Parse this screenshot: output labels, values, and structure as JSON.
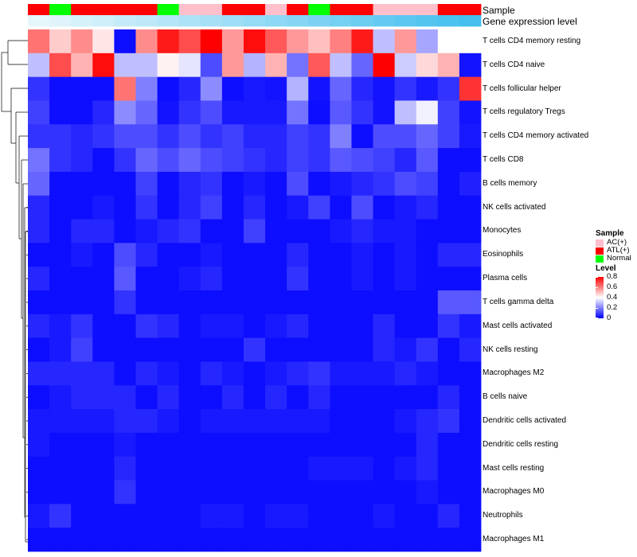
{
  "chart_data": {
    "type": "heatmap",
    "annotation_labels": [
      "Sample",
      "Gene expression level"
    ],
    "rows": [
      "T cells CD4 memory resting",
      "T cells CD4 naive",
      "T cells follicular helper",
      "T cells regulatory  Tregs",
      "T cells CD4 memory activated",
      "T cells CD8",
      "B cells memory",
      "NK cells activated",
      "Monocytes",
      "Eosinophils",
      "Plasma cells",
      "T cells gamma delta",
      "Mast cells activated",
      "NK cells resting",
      "Macrophages M2",
      "B cells naive",
      "Dendritic cells activated",
      "Dendritic cells resting",
      "Mast cells resting",
      "Macrophages M0",
      "Neutrophils",
      "Macrophages M1"
    ],
    "column_samples": [
      "ATL(+)",
      "Normal",
      "ATL(+)",
      "ATL(+)",
      "ATL(+)",
      "ATL(+)",
      "Normal",
      "AC(+)",
      "AC(+)",
      "ATL(+)",
      "ATL(+)",
      "AC(+)",
      "ATL(+)",
      "Normal",
      "ATL(+)",
      "ATL(+)",
      "AC(+)",
      "AC(+)",
      "AC(+)",
      "ATL(+)",
      "ATL(+)"
    ],
    "column_expression": [
      0.0,
      0.05,
      0.1,
      0.15,
      0.2,
      0.25,
      0.3,
      0.35,
      0.4,
      0.45,
      0.5,
      0.55,
      0.6,
      0.65,
      0.7,
      0.75,
      0.8,
      0.85,
      0.9,
      0.95,
      1.0
    ],
    "values": [
      [
        0.62,
        0.48,
        0.58,
        0.44,
        0.02,
        0.58,
        0.76,
        0.68,
        0.8,
        0.56,
        0.78,
        0.66,
        0.56,
        0.5,
        0.6,
        0.76,
        0.3,
        0.56,
        0.26,
        0.4,
        0.4
      ],
      [
        0.3,
        0.68,
        0.52,
        0.78,
        0.3,
        0.3,
        0.42,
        0.36,
        0.12,
        0.56,
        0.28,
        0.52,
        0.18,
        0.66,
        0.3,
        0.16,
        0.8,
        0.32,
        0.46,
        0.52,
        0.03
      ],
      [
        0.08,
        0.02,
        0.02,
        0.02,
        0.62,
        0.2,
        0.02,
        0.06,
        0.22,
        0.02,
        0.04,
        0.03,
        0.28,
        0.03,
        0.16,
        0.06,
        0.03,
        0.08,
        0.04,
        0.08,
        0.72
      ],
      [
        0.1,
        0.02,
        0.02,
        0.06,
        0.22,
        0.16,
        0.03,
        0.08,
        0.12,
        0.04,
        0.04,
        0.04,
        0.18,
        0.02,
        0.14,
        0.08,
        0.03,
        0.3,
        0.38,
        0.1,
        0.03
      ],
      [
        0.08,
        0.08,
        0.06,
        0.08,
        0.12,
        0.12,
        0.08,
        0.12,
        0.08,
        0.1,
        0.06,
        0.06,
        0.1,
        0.08,
        0.2,
        0.02,
        0.12,
        0.12,
        0.16,
        0.1,
        0.04
      ],
      [
        0.18,
        0.08,
        0.06,
        0.02,
        0.08,
        0.16,
        0.12,
        0.16,
        0.12,
        0.1,
        0.08,
        0.06,
        0.1,
        0.08,
        0.14,
        0.12,
        0.1,
        0.06,
        0.14,
        0.02,
        0.02
      ],
      [
        0.16,
        0.02,
        0.02,
        0.02,
        0.02,
        0.1,
        0.02,
        0.06,
        0.08,
        0.02,
        0.04,
        0.02,
        0.12,
        0.02,
        0.04,
        0.06,
        0.08,
        0.12,
        0.1,
        0.02,
        0.05
      ],
      [
        0.06,
        0.02,
        0.02,
        0.04,
        0.02,
        0.08,
        0.02,
        0.06,
        0.1,
        0.02,
        0.06,
        0.02,
        0.04,
        0.1,
        0.02,
        0.12,
        0.02,
        0.04,
        0.06,
        0.02,
        0.02
      ],
      [
        0.06,
        0.02,
        0.06,
        0.06,
        0.02,
        0.04,
        0.06,
        0.08,
        0.02,
        0.02,
        0.1,
        0.02,
        0.02,
        0.02,
        0.04,
        0.06,
        0.04,
        0.04,
        0.02,
        0.02,
        0.02
      ],
      [
        0.02,
        0.02,
        0.04,
        0.02,
        0.12,
        0.06,
        0.02,
        0.02,
        0.04,
        0.02,
        0.02,
        0.02,
        0.06,
        0.02,
        0.02,
        0.04,
        0.02,
        0.04,
        0.02,
        0.06,
        0.06
      ],
      [
        0.06,
        0.02,
        0.02,
        0.02,
        0.14,
        0.02,
        0.02,
        0.04,
        0.06,
        0.02,
        0.02,
        0.02,
        0.08,
        0.02,
        0.02,
        0.04,
        0.02,
        0.04,
        0.02,
        0.02,
        0.02
      ],
      [
        0.02,
        0.02,
        0.02,
        0.02,
        0.08,
        0.02,
        0.02,
        0.02,
        0.02,
        0.02,
        0.02,
        0.02,
        0.02,
        0.02,
        0.02,
        0.02,
        0.02,
        0.02,
        0.02,
        0.14,
        0.14
      ],
      [
        0.06,
        0.04,
        0.08,
        0.02,
        0.02,
        0.08,
        0.06,
        0.02,
        0.04,
        0.04,
        0.02,
        0.04,
        0.06,
        0.02,
        0.02,
        0.02,
        0.06,
        0.02,
        0.02,
        0.08,
        0.04
      ],
      [
        0.02,
        0.04,
        0.1,
        0.02,
        0.02,
        0.02,
        0.02,
        0.02,
        0.02,
        0.02,
        0.08,
        0.02,
        0.02,
        0.02,
        0.02,
        0.02,
        0.06,
        0.04,
        0.08,
        0.02,
        0.06
      ],
      [
        0.06,
        0.06,
        0.06,
        0.06,
        0.02,
        0.06,
        0.04,
        0.02,
        0.06,
        0.04,
        0.02,
        0.04,
        0.06,
        0.08,
        0.04,
        0.04,
        0.04,
        0.06,
        0.04,
        0.02,
        0.02
      ],
      [
        0.02,
        0.04,
        0.06,
        0.06,
        0.06,
        0.02,
        0.06,
        0.02,
        0.02,
        0.06,
        0.02,
        0.06,
        0.02,
        0.06,
        0.02,
        0.02,
        0.02,
        0.02,
        0.02,
        0.06,
        0.02
      ],
      [
        0.04,
        0.04,
        0.04,
        0.04,
        0.06,
        0.06,
        0.04,
        0.02,
        0.04,
        0.04,
        0.04,
        0.04,
        0.04,
        0.04,
        0.02,
        0.02,
        0.02,
        0.04,
        0.06,
        0.08,
        0.02
      ],
      [
        0.04,
        0.02,
        0.02,
        0.02,
        0.04,
        0.02,
        0.02,
        0.02,
        0.02,
        0.02,
        0.02,
        0.02,
        0.02,
        0.02,
        0.02,
        0.02,
        0.02,
        0.02,
        0.06,
        0.02,
        0.02
      ],
      [
        0.02,
        0.02,
        0.02,
        0.02,
        0.06,
        0.02,
        0.02,
        0.02,
        0.02,
        0.02,
        0.02,
        0.02,
        0.02,
        0.04,
        0.04,
        0.04,
        0.02,
        0.04,
        0.06,
        0.02,
        0.02
      ],
      [
        0.02,
        0.02,
        0.02,
        0.02,
        0.08,
        0.02,
        0.02,
        0.02,
        0.02,
        0.02,
        0.02,
        0.02,
        0.02,
        0.02,
        0.02,
        0.02,
        0.02,
        0.02,
        0.04,
        0.02,
        0.02
      ],
      [
        0.04,
        0.08,
        0.02,
        0.02,
        0.02,
        0.02,
        0.02,
        0.02,
        0.04,
        0.04,
        0.02,
        0.04,
        0.04,
        0.02,
        0.02,
        0.02,
        0.04,
        0.02,
        0.02,
        0.06,
        0.02
      ],
      [
        0.02,
        0.02,
        0.02,
        0.02,
        0.02,
        0.02,
        0.02,
        0.02,
        0.02,
        0.02,
        0.02,
        0.02,
        0.02,
        0.02,
        0.02,
        0.02,
        0.02,
        0.02,
        0.02,
        0.02,
        0.02
      ]
    ],
    "sample_colors": {
      "AC(+)": "#ffc0cb",
      "ATL(+)": "#ff0000",
      "Normal": "#00ff00"
    },
    "expression_colors": {
      "low": "#e6f6fb",
      "high": "#44bfee"
    },
    "color_scale": {
      "min": 0,
      "mid": 0.4,
      "max": 0.8,
      "low": "#0000ff",
      "mid_color": "#ffffff",
      "high": "#ff0000"
    },
    "legend": {
      "sample_title": "Sample",
      "sample_entries": [
        "AC(+)",
        "ATL(+)",
        "Normal"
      ],
      "level_title": "Level",
      "level_ticks": [
        "0.8",
        "0.6",
        "0.4",
        "0.2",
        "0"
      ]
    }
  }
}
